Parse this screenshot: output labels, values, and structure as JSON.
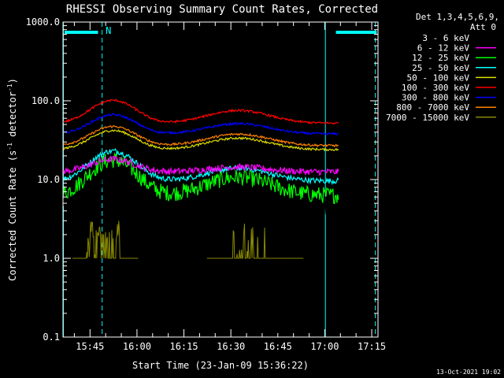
{
  "chart_data": {
    "type": "line",
    "title": "RHESSI Observing Summary Count Rates, Corrected",
    "xlabel": "Start Time (23-Jan-09 15:36:22)",
    "ylabel_prefix": "Corrected Count Rate (s",
    "ylabel_mid": " detector",
    "ylabel_suffix": ")",
    "ylabel_sup": "-1",
    "y_scale": "log",
    "ylim": [
      0.1,
      1000
    ],
    "xlim": [
      "15:36:22",
      "17:17:00"
    ],
    "y_ticks": [
      {
        "label": "1000.0",
        "value": 1000
      },
      {
        "label": "100.0",
        "value": 100
      },
      {
        "label": "10.0",
        "value": 10
      },
      {
        "label": "1.0",
        "value": 1
      },
      {
        "label": "0.1",
        "value": 0.1
      }
    ],
    "x_ticks": [
      {
        "label": "15:45",
        "minutes": 8.63
      },
      {
        "label": "16:00",
        "minutes": 23.63
      },
      {
        "label": "16:15",
        "minutes": 38.63
      },
      {
        "label": "16:30",
        "minutes": 53.63
      },
      {
        "label": "16:45",
        "minutes": 68.63
      },
      {
        "label": "17:00",
        "minutes": 83.63
      },
      {
        "label": "17:15",
        "minutes": 98.63
      }
    ],
    "legend": {
      "placement": "right",
      "header_line1": "Det 1,3,4,5,6,9,",
      "header_line2": "Att 0"
    },
    "series": [
      {
        "name": "3 - 6 keV",
        "color": "#000000",
        "level": 5.2,
        "amp1": 2.3,
        "amp2": 1.05,
        "noise": 0.55
      },
      {
        "name": "6 - 12 keV",
        "color": "#ff00ff",
        "level": 12.5,
        "amp1": 1.45,
        "amp2": 1.15,
        "noise": 0.12
      },
      {
        "name": "12 - 25 keV",
        "color": "#00ff00",
        "level": 6.3,
        "amp1": 2.8,
        "amp2": 1.7,
        "noise": 0.3
      },
      {
        "name": "25 - 50 keV",
        "color": "#00ffff",
        "level": 9.6,
        "amp1": 2.4,
        "amp2": 1.45,
        "noise": 0.1
      },
      {
        "name": "50 - 100 keV",
        "color": "#dddd00",
        "level": 24.0,
        "amp1": 1.75,
        "amp2": 1.4,
        "noise": 0.04
      },
      {
        "name": "100 - 300 keV",
        "color": "#ff0000",
        "level": 52.0,
        "amp1": 1.95,
        "amp2": 1.45,
        "noise": 0.04
      },
      {
        "name": "300 - 800 keV",
        "color": "#0000ff",
        "level": 38.0,
        "amp1": 1.75,
        "amp2": 1.35,
        "noise": 0.04
      },
      {
        "name": "800 - 7000 keV",
        "color": "#ff8000",
        "level": 27.0,
        "amp1": 1.75,
        "amp2": 1.4,
        "noise": 0.04
      },
      {
        "name": "7000 - 15000 keV",
        "color": "#888800",
        "level": 1.0,
        "amp1": 1.0,
        "amp2": 1.0,
        "noise": 0.0
      }
    ],
    "flag_bars": [
      {
        "start_min": 0.5,
        "end_min": 11.2
      },
      {
        "start_min": 87.2,
        "end_min": 100.2
      }
    ],
    "flag_label": "N",
    "vertical_markers_min": [
      12.5,
      99.8
    ],
    "night_boundaries_min": [
      0.0,
      83.7
    ],
    "timestamp": "13-Oct-2021 19:02"
  }
}
